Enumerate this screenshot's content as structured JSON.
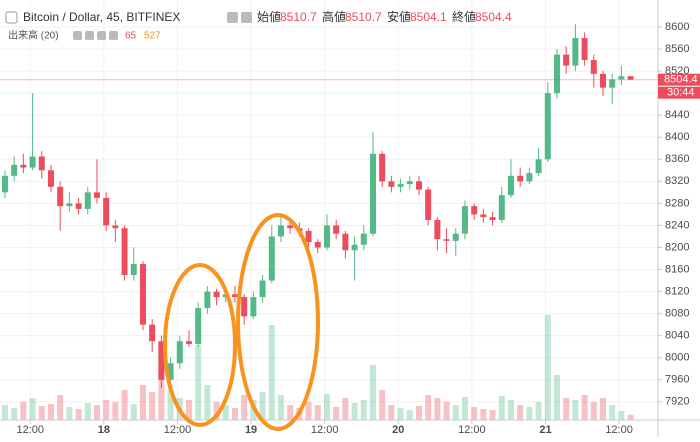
{
  "chart_data": {
    "type": "candlestick",
    "title": "Bitcoin / Dollar, 45, BITFINEX",
    "ohlc_legend": [
      {
        "label": "始値",
        "value": 8510.7
      },
      {
        "label": "高値",
        "value": 8510.7
      },
      {
        "label": "安値",
        "value": 8504.1
      },
      {
        "label": "終値",
        "value": 8504.4
      }
    ],
    "volume_label": "出来高 (20)",
    "volume_legend_values": [
      65,
      527
    ],
    "last_price": 8504.4,
    "countdown": "30:44",
    "up_color": "#53b987",
    "down_color": "#eb4d5c",
    "grid": true,
    "open": [
      8300,
      8330,
      8350,
      8345,
      8365,
      8340,
      8310,
      8275,
      8280,
      8270,
      8300,
      8290,
      8240,
      8235,
      8150,
      8170,
      8060,
      8030,
      7960,
      7990,
      8030,
      8025,
      8090,
      8120,
      8110,
      8115,
      8110,
      8075,
      8110,
      8140,
      8220,
      8240,
      8235,
      8230,
      8210,
      8200,
      8240,
      8225,
      8195,
      8205,
      8225,
      8370,
      8320,
      8310,
      8315,
      8320,
      8305,
      8250,
      8215,
      8212,
      8225,
      8275,
      8260,
      8255,
      8250,
      8295,
      8330,
      8320,
      8335,
      8360,
      8480,
      8550,
      8530,
      8580,
      8540,
      8515,
      8490,
      8505,
      8510.7
    ],
    "high": [
      8340,
      8365,
      8370,
      8480,
      8375,
      8350,
      8320,
      8300,
      8290,
      8310,
      8360,
      8300,
      8250,
      8240,
      8200,
      8175,
      8070,
      8040,
      8000,
      8040,
      8050,
      8100,
      8130,
      8125,
      8125,
      8130,
      8115,
      8120,
      8150,
      8240,
      8260,
      8250,
      8245,
      8235,
      8215,
      8260,
      8250,
      8230,
      8220,
      8240,
      8410,
      8375,
      8330,
      8325,
      8330,
      8330,
      8310,
      8255,
      8235,
      8235,
      8285,
      8280,
      8270,
      8265,
      8310,
      8360,
      8345,
      8345,
      8380,
      8500,
      8560,
      8565,
      8605,
      8590,
      8550,
      8520,
      8515,
      8530,
      8510.7
    ],
    "low": [
      8290,
      8320,
      8335,
      8340,
      8325,
      8300,
      8230,
      8265,
      8260,
      8260,
      8280,
      8230,
      8210,
      8140,
      8140,
      8050,
      8010,
      7945,
      7950,
      7980,
      8020,
      8020,
      8080,
      8095,
      8100,
      8100,
      8060,
      8070,
      8100,
      8135,
      8210,
      8225,
      8220,
      8195,
      8190,
      8195,
      8215,
      8180,
      8140,
      8195,
      8220,
      8310,
      8300,
      8300,
      8305,
      8295,
      8240,
      8195,
      8190,
      8185,
      8215,
      8250,
      8245,
      8240,
      8245,
      8290,
      8310,
      8315,
      8330,
      8355,
      8470,
      8515,
      8520,
      8530,
      8490,
      8475,
      8460,
      8495,
      8504.1
    ],
    "close": [
      8330,
      8350,
      8345,
      8365,
      8340,
      8310,
      8275,
      8280,
      8270,
      8300,
      8290,
      8240,
      8235,
      8150,
      8170,
      8060,
      8030,
      7960,
      7990,
      8030,
      8025,
      8090,
      8120,
      8110,
      8115,
      8110,
      8075,
      8110,
      8140,
      8220,
      8240,
      8235,
      8230,
      8210,
      8200,
      8240,
      8225,
      8195,
      8205,
      8225,
      8370,
      8320,
      8310,
      8315,
      8320,
      8305,
      8250,
      8215,
      8212,
      8225,
      8275,
      8260,
      8255,
      8250,
      8295,
      8330,
      8320,
      8335,
      8360,
      8480,
      8550,
      8530,
      8580,
      8540,
      8515,
      8490,
      8505,
      8510.7,
      8504.4
    ],
    "volume": [
      1500,
      1200,
      1800,
      2200,
      1400,
      1600,
      2500,
      1300,
      1100,
      1700,
      1500,
      2000,
      1800,
      3000,
      1600,
      3500,
      2800,
      4500,
      3000,
      2200,
      2000,
      7500,
      3500,
      1800,
      1500,
      1200,
      2500,
      2000,
      2800,
      9500,
      2500,
      1500,
      1200,
      1800,
      1500,
      2600,
      1300,
      2200,
      1700,
      2000,
      5500,
      3000,
      1500,
      1200,
      1000,
      1400,
      2500,
      2200,
      1800,
      1500,
      2300,
      1300,
      1100,
      1000,
      2400,
      2000,
      1500,
      1300,
      1800,
      10500,
      4500,
      2200,
      2000,
      2500,
      1800,
      2200,
      1500,
      900,
      527
    ],
    "volume_lim": [
      0,
      12000
    ],
    "ylim": [
      7887,
      8649
    ],
    "yticks": [
      7920,
      7960,
      8000,
      8040,
      8080,
      8120,
      8160,
      8200,
      8240,
      8280,
      8320,
      8360,
      8400,
      8440,
      8480,
      8520,
      8560,
      8600
    ],
    "xlim": [
      -0.54,
      70.98
    ],
    "xticks": [
      {
        "value": 2.75,
        "label": "12:00"
      },
      {
        "value": 10.75,
        "label": "18"
      },
      {
        "value": 18.75,
        "label": "12:00"
      },
      {
        "value": 26.75,
        "label": "19"
      },
      {
        "value": 34.75,
        "label": "12:00"
      },
      {
        "value": 42.75,
        "label": "20"
      },
      {
        "value": 50.75,
        "label": "12:00"
      },
      {
        "value": 58.75,
        "label": "21"
      },
      {
        "value": 66.75,
        "label": "12:00"
      }
    ]
  }
}
